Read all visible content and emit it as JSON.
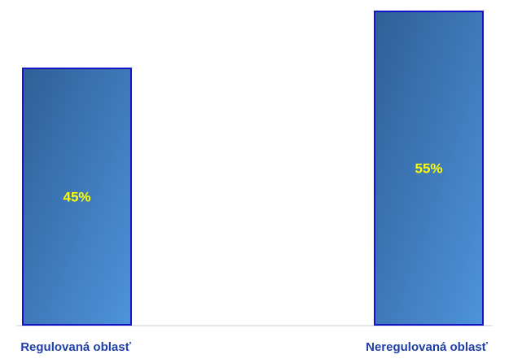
{
  "chart_data": {
    "type": "bar",
    "categories": [
      "Regulovaná oblasť",
      "Neregulovaná oblasť"
    ],
    "values": [
      45,
      55
    ],
    "value_labels": [
      "45%",
      "55%"
    ],
    "title": "",
    "xlabel": "",
    "ylabel": "",
    "ylim": [
      0,
      55
    ],
    "grid": false,
    "legend": "none"
  },
  "colors": {
    "bar_fill_dark": "#2f5f97",
    "bar_fill_light": "#4e93db",
    "bar_border": "#1414c8",
    "value_text": "#ffff00",
    "category_text": "#1f3fa8",
    "axis_line": "#9a9a9a"
  }
}
